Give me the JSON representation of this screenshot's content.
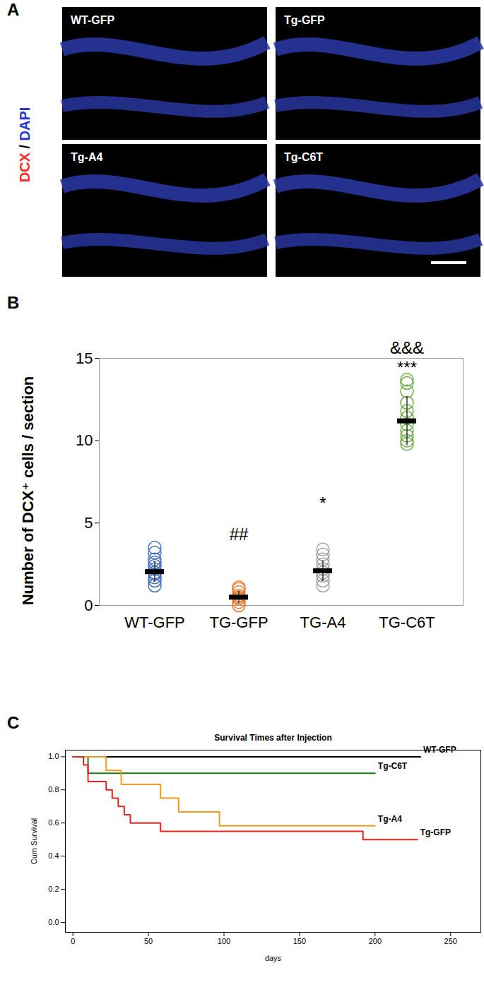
{
  "chart_data": [
    {
      "type": "image",
      "panel_label": "A",
      "images": [
        "WT-GFP",
        "Tg-GFP",
        "Tg-A4",
        "Tg-C6T"
      ],
      "labels": [
        "DCX",
        "/",
        "DAPI"
      ],
      "colors": [
        "#ff2a2a",
        "#000000",
        "#2a3ad0"
      ]
    },
    {
      "type": "scatter",
      "panel_label": "B",
      "marker": "circle-open",
      "y_label": "Number of DCX⁺ cells / section",
      "categories": [
        "WT-GFP",
        "TG-GFP",
        "TG-A4",
        "TG-C6T"
      ],
      "colors": [
        "#4472c4",
        "#ed7d31",
        "#a5a5a5",
        "#70ad47"
      ],
      "points": [
        [
          1.2,
          1.5,
          1.7,
          1.9,
          2.0,
          2.2,
          2.4,
          2.6,
          2.8,
          3.2,
          3.5
        ],
        [
          0.0,
          0.2,
          0.4,
          0.5,
          0.6,
          0.8,
          1.0,
          1.1
        ],
        [
          1.2,
          1.5,
          1.8,
          2.0,
          2.2,
          2.5,
          2.8,
          3.1,
          3.4
        ],
        [
          9.8,
          10.0,
          10.3,
          10.6,
          11.0,
          11.4,
          11.8,
          12.3,
          13.0,
          13.5,
          13.7
        ]
      ],
      "mean": [
        2.05,
        0.5,
        2.1,
        11.2
      ],
      "error": [
        0.6,
        0.35,
        0.6,
        1.45
      ],
      "annotations": [
        {
          "category": "TG-GFP",
          "text": "##",
          "y": 4.3
        },
        {
          "category": "TG-A4",
          "text": "*",
          "y": 6.2
        },
        {
          "category": "TG-C6T",
          "text": "***",
          "y": 14.4
        },
        {
          "category": "TG-C6T",
          "text": "&&&",
          "y": 15.6
        }
      ],
      "ylim": [
        0,
        15
      ],
      "yticks": [
        0,
        5,
        10,
        15
      ],
      "grid": false
    },
    {
      "type": "line",
      "panel_label": "C",
      "line_style": "step",
      "title": "Survival Times after Injection",
      "x_label": "days",
      "y_label": "Cum Survival",
      "series": [
        {
          "name": "WT-GFP",
          "color": "#000000",
          "x": [
            0,
            230
          ],
          "values": [
            1.0,
            1.0
          ]
        },
        {
          "name": "Tg-C6T",
          "color": "#1a7a1a",
          "x": [
            0,
            10,
            200
          ],
          "values": [
            1.0,
            0.9,
            0.9
          ]
        },
        {
          "name": "Tg-A4",
          "color": "#f39a1e",
          "x": [
            0,
            22,
            32,
            58,
            70,
            97,
            200
          ],
          "values": [
            1.0,
            0.917,
            0.833,
            0.75,
            0.667,
            0.583,
            0.583
          ]
        },
        {
          "name": "Tg-GFP",
          "color": "#e8231f",
          "x": [
            0,
            7,
            10,
            22,
            26,
            30,
            34,
            38,
            58,
            192,
            228
          ],
          "values": [
            1.0,
            0.95,
            0.85,
            0.8,
            0.75,
            0.7,
            0.65,
            0.6,
            0.55,
            0.5,
            0.5
          ]
        }
      ],
      "xlim": [
        -5,
        270
      ],
      "xticks": [
        0,
        50,
        100,
        150,
        200,
        250
      ],
      "ylim": [
        -0.06,
        1.04
      ],
      "yticks": [
        {
          "value": 0,
          "label": "0.0"
        },
        {
          "value": 0.2,
          "label": "0.2"
        },
        {
          "value": 0.4,
          "label": "0.4"
        },
        {
          "value": 0.6,
          "label": "0.6"
        },
        {
          "value": 0.8,
          "label": "0.8"
        },
        {
          "value": 1.0,
          "label": "1.0"
        }
      ],
      "grid": false
    }
  ]
}
